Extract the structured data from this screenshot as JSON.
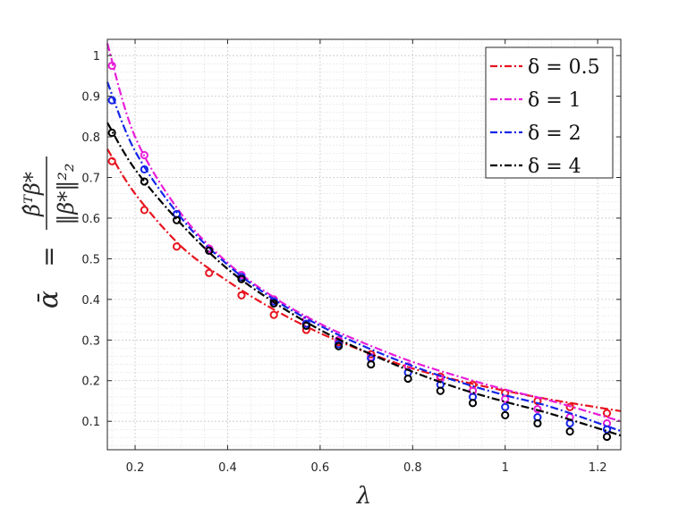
{
  "chart_data": {
    "type": "line",
    "xlabel": "λ",
    "ylabel": {
      "lhs": "ᾱ",
      "eq": "=",
      "numerator": "β̂ᵀβ*",
      "denominator": "‖β*‖²₂"
    },
    "xlim": [
      0.14,
      1.25
    ],
    "ylim": [
      0.03,
      1.04
    ],
    "xticks": [
      0.2,
      0.4,
      0.6,
      0.8,
      1,
      1.2
    ],
    "xtick_labels": [
      "0.2",
      "0.4",
      "0.6",
      "0.8",
      "1",
      "1.2"
    ],
    "yticks": [
      0.1,
      0.2,
      0.3,
      0.4,
      0.5,
      0.6,
      0.7,
      0.8,
      0.9,
      1
    ],
    "ytick_labels": [
      "0.1",
      "0.2",
      "0.3",
      "0.4",
      "0.5",
      "0.6",
      "0.7",
      "0.8",
      "0.9",
      "1"
    ],
    "grid": true,
    "minor_grid": true,
    "legend_position": "top-right",
    "series": [
      {
        "name": "δ = 0.5",
        "color": "#e8141f",
        "curve_x": [
          0.14,
          0.2,
          0.3,
          0.4,
          0.5,
          0.6,
          0.7,
          0.8,
          0.9,
          1.0,
          1.1,
          1.25
        ],
        "curve_y": [
          0.77,
          0.66,
          0.53,
          0.445,
          0.375,
          0.317,
          0.27,
          0.23,
          0.2,
          0.175,
          0.153,
          0.125
        ],
        "markers_x": [
          0.15,
          0.22,
          0.29,
          0.36,
          0.43,
          0.5,
          0.57,
          0.64,
          0.71,
          0.79,
          0.86,
          0.93,
          1.0,
          1.07,
          1.14,
          1.22
        ],
        "markers_y": [
          0.74,
          0.62,
          0.53,
          0.465,
          0.41,
          0.362,
          0.325,
          0.295,
          0.265,
          0.235,
          0.21,
          0.19,
          0.17,
          0.15,
          0.135,
          0.12
        ]
      },
      {
        "name": "δ = 1",
        "color": "#e81ed8",
        "curve_x": [
          0.14,
          0.2,
          0.3,
          0.4,
          0.5,
          0.6,
          0.7,
          0.8,
          0.9,
          1.0,
          1.1,
          1.25
        ],
        "curve_y": [
          1.03,
          0.8,
          0.61,
          0.49,
          0.405,
          0.34,
          0.29,
          0.246,
          0.21,
          0.178,
          0.15,
          0.1
        ],
        "markers_x": [
          0.15,
          0.22,
          0.29,
          0.36,
          0.43,
          0.5,
          0.57,
          0.64,
          0.71,
          0.79,
          0.86,
          0.93,
          1.0,
          1.07,
          1.14,
          1.22
        ],
        "markers_y": [
          0.975,
          0.755,
          0.61,
          0.525,
          0.46,
          0.4,
          0.35,
          0.3,
          0.258,
          0.235,
          0.205,
          0.175,
          0.155,
          0.13,
          0.11,
          0.095
        ]
      },
      {
        "name": "δ = 2",
        "color": "#1426e8",
        "curve_x": [
          0.14,
          0.2,
          0.3,
          0.4,
          0.5,
          0.6,
          0.7,
          0.8,
          0.9,
          1.0,
          1.1,
          1.25
        ],
        "curve_y": [
          0.935,
          0.765,
          0.6,
          0.485,
          0.4,
          0.335,
          0.282,
          0.236,
          0.197,
          0.164,
          0.135,
          0.076
        ],
        "markers_x": [
          0.15,
          0.22,
          0.29,
          0.36,
          0.43,
          0.5,
          0.57,
          0.64,
          0.71,
          0.79,
          0.86,
          0.93,
          1.0,
          1.07,
          1.14,
          1.22
        ],
        "markers_y": [
          0.89,
          0.72,
          0.61,
          0.52,
          0.455,
          0.395,
          0.34,
          0.29,
          0.255,
          0.22,
          0.19,
          0.16,
          0.135,
          0.11,
          0.095,
          0.08
        ]
      },
      {
        "name": "δ = 4",
        "color": "#000000",
        "curve_x": [
          0.14,
          0.2,
          0.3,
          0.4,
          0.5,
          0.6,
          0.7,
          0.8,
          0.9,
          1.0,
          1.1,
          1.25
        ],
        "curve_y": [
          0.835,
          0.72,
          0.585,
          0.475,
          0.393,
          0.325,
          0.27,
          0.222,
          0.181,
          0.148,
          0.118,
          0.065
        ],
        "markers_x": [
          0.15,
          0.22,
          0.29,
          0.36,
          0.43,
          0.5,
          0.57,
          0.64,
          0.71,
          0.79,
          0.86,
          0.93,
          1.0,
          1.07,
          1.14,
          1.22
        ],
        "markers_y": [
          0.81,
          0.69,
          0.595,
          0.52,
          0.45,
          0.39,
          0.335,
          0.285,
          0.24,
          0.205,
          0.175,
          0.145,
          0.115,
          0.095,
          0.075,
          0.062
        ]
      }
    ]
  }
}
